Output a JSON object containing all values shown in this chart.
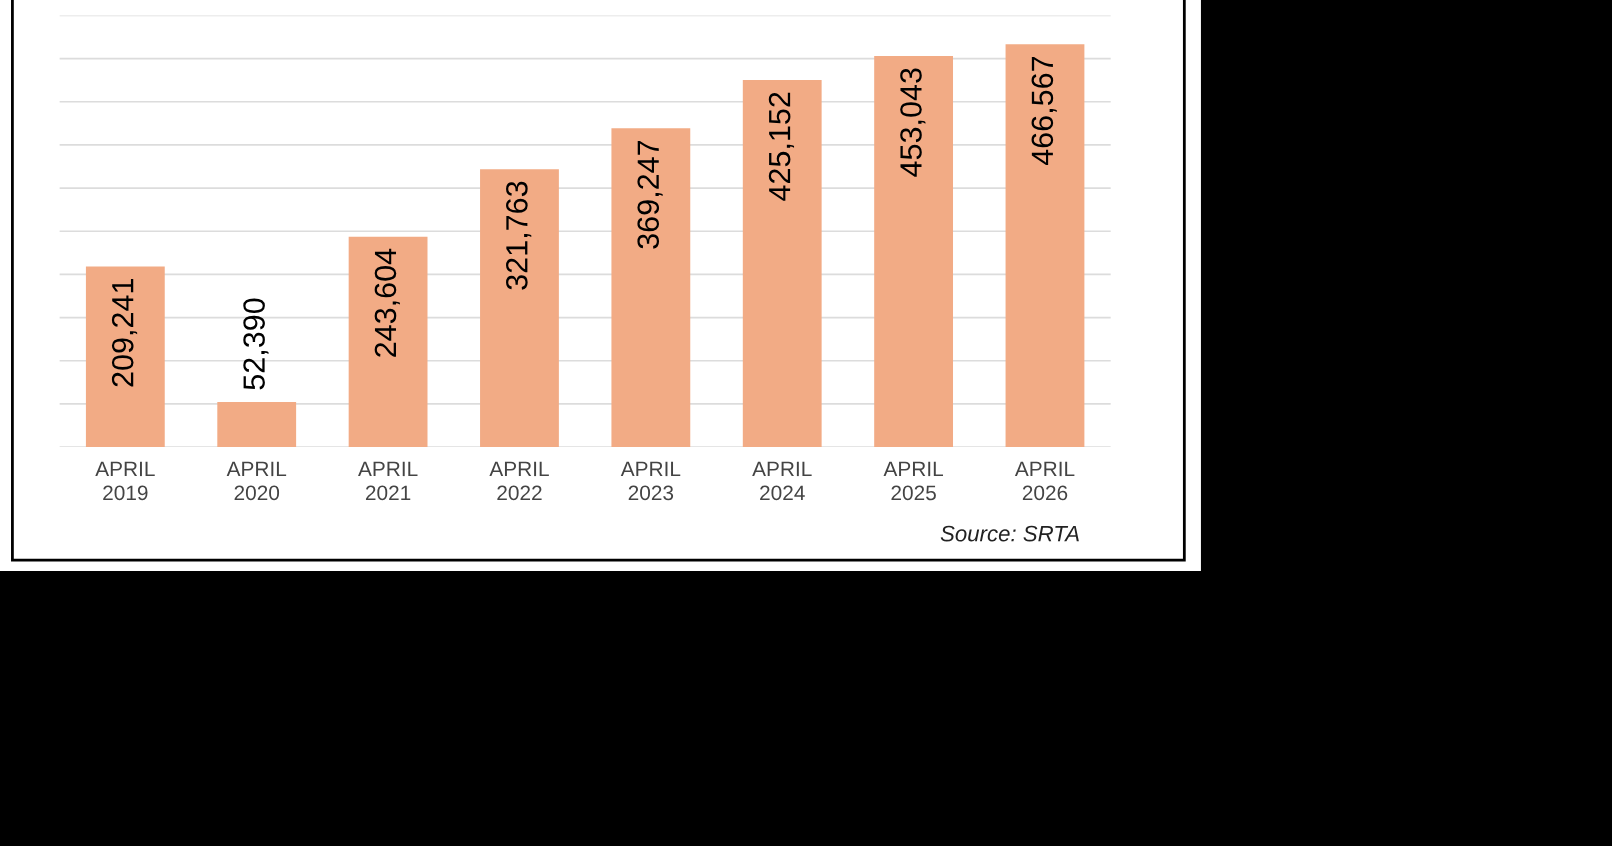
{
  "chart_data": {
    "type": "bar",
    "categories": [
      "APRIL\n2019",
      "APRIL\n2020",
      "APRIL\n2021",
      "APRIL\n2022",
      "APRIL\n2023",
      "APRIL\n2024",
      "APRIL\n2025",
      "APRIL\n2026"
    ],
    "values": [
      209241,
      52390,
      243604,
      321763,
      369247,
      425152,
      453043,
      466567
    ],
    "value_labels": [
      "209,241",
      "52,390",
      "243,604",
      "321,763",
      "369,247",
      "425,152",
      "453,043",
      "466,567"
    ],
    "color": "#f2ab85",
    "ylim": [
      0,
      500000
    ],
    "yticks": [
      {
        "value": 0,
        "label": null
      },
      {
        "value": 50000,
        "label": null
      },
      {
        "value": 100000,
        "label": null
      },
      {
        "value": 150000,
        "label": null
      },
      {
        "value": 200000,
        "label": null
      },
      {
        "value": 250000,
        "label": null
      },
      {
        "value": 300000,
        "label": null
      },
      {
        "value": 350000,
        "label": null
      },
      {
        "value": 400000,
        "label": null
      },
      {
        "value": 450000,
        "label": null
      },
      {
        "value": 500000,
        "label": null
      }
    ],
    "tick_labels": "x",
    "grid": "y",
    "legend": false,
    "annotations": [
      "Source: SRTA"
    ]
  }
}
